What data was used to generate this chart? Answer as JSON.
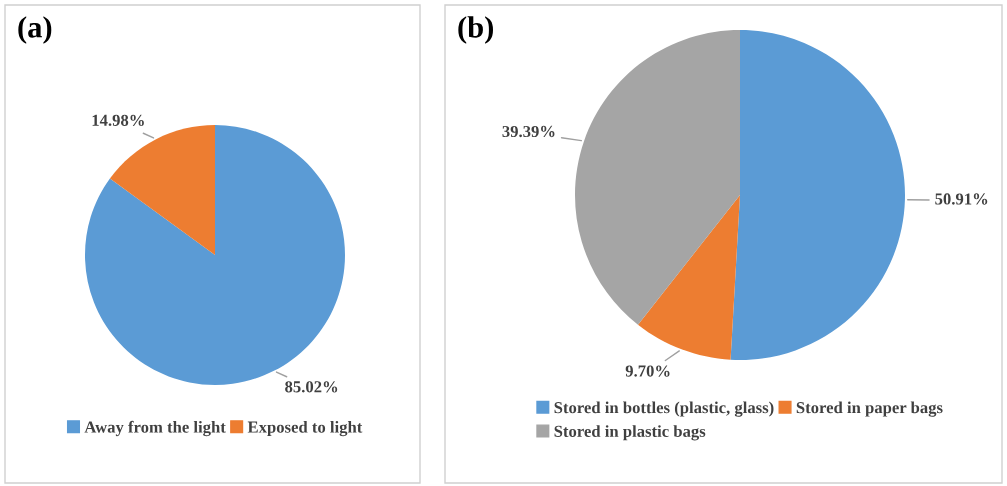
{
  "chart_data": [
    {
      "type": "pie",
      "title": "(a)",
      "categories": [
        "Away from the light",
        "Exposed to light"
      ],
      "values": [
        85.02,
        14.98
      ],
      "colors": [
        "#5b9bd5",
        "#ed7d31"
      ],
      "value_labels": [
        "85.02%",
        "14.98%"
      ],
      "legend": "bottom"
    },
    {
      "type": "pie",
      "title": "(b)",
      "categories": [
        "Stored in bottles (plastic, glass)",
        "Stored in paper bags",
        "Stored in plastic bags"
      ],
      "values": [
        50.91,
        9.7,
        39.39
      ],
      "colors": [
        "#5b9bd5",
        "#ed7d31",
        "#a5a5a5"
      ],
      "value_labels": [
        "50.91%",
        "9.70%",
        "39.39%"
      ],
      "legend": "bottom"
    }
  ]
}
